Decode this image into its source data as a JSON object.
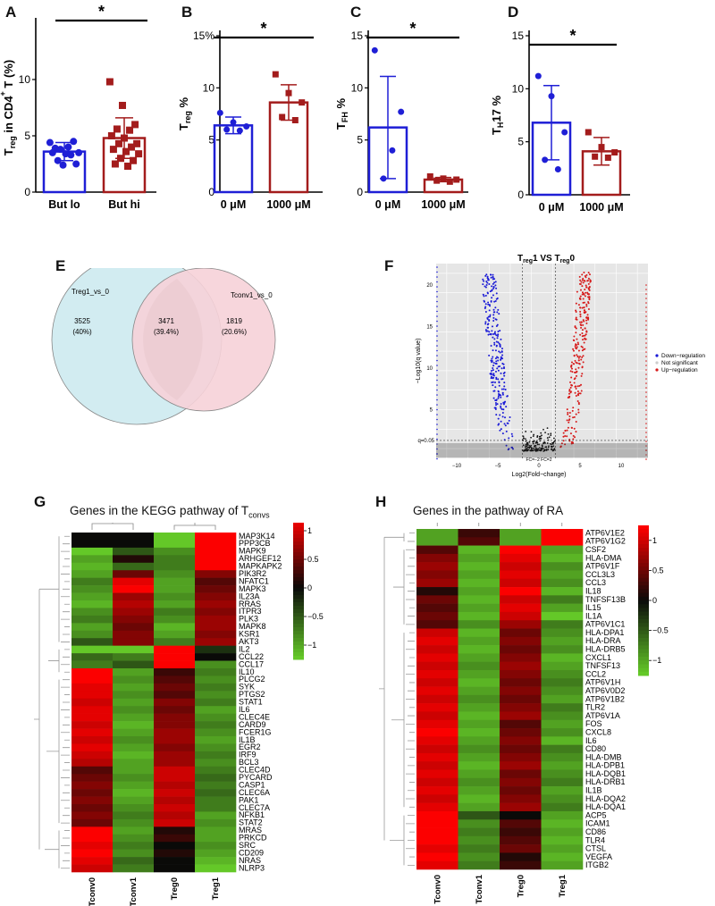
{
  "panels": {
    "A": {
      "label": "A",
      "ylabel_main": "T",
      "ylabel_sub": "reg",
      "ylabel_rest": " in CD4",
      "ylabel_sup": "+",
      "ylabel_end": " T (%)",
      "ylim": [
        0,
        15
      ],
      "yticks": [
        "0",
        "5",
        "10"
      ],
      "categories": [
        "But lo",
        "But hi"
      ],
      "means": [
        3.6,
        4.8
      ],
      "sd": [
        0.8,
        1.8
      ],
      "colors": [
        "#1f1fd6",
        "#a31c1c"
      ],
      "points": [
        [
          4.4,
          4.0,
          3.9,
          4.5,
          3.8,
          3.5,
          3.4,
          3.5,
          3.3,
          2.8,
          2.5,
          2.4
        ],
        [
          9.8,
          7.7,
          6.0,
          5.6,
          5.5,
          5.0,
          4.8,
          4.3,
          4.3,
          4.0,
          3.8,
          3.6,
          3.4,
          3.0,
          2.8,
          2.5,
          2.3
        ]
      ],
      "sig": "*"
    },
    "B": {
      "label": "B",
      "ylabel_main": "T",
      "ylabel_sub": "reg",
      "ylabel_end": " %",
      "ylim": [
        0,
        15
      ],
      "yticks": [
        "0",
        "5",
        "10",
        "15%"
      ],
      "categories": [
        "0 μM",
        "1000 μM"
      ],
      "means": [
        6.4,
        8.6
      ],
      "sd": [
        0.8,
        1.7
      ],
      "colors": [
        "#1f1fd6",
        "#a31c1c"
      ],
      "points": [
        [
          7.6,
          6.7,
          6.3,
          6.0,
          5.9
        ],
        [
          11.3,
          9.5,
          8.6,
          7.2,
          6.9
        ]
      ],
      "sig": "*"
    },
    "C": {
      "label": "C",
      "ylabel_main": "T",
      "ylabel_sub": "FH",
      "ylabel_end": " %",
      "ylim": [
        0,
        15
      ],
      "yticks": [
        "0",
        "5",
        "10",
        "15"
      ],
      "categories": [
        "0 μM",
        "1000 μM"
      ],
      "means": [
        6.2,
        1.2
      ],
      "sd": [
        4.9,
        0.2
      ],
      "colors": [
        "#1f1fd6",
        "#a31c1c"
      ],
      "points": [
        [
          13.6,
          7.7,
          4.0,
          1.3
        ],
        [
          1.5,
          1.3,
          1.2,
          1.1,
          1.0
        ]
      ],
      "sig": "*"
    },
    "D": {
      "label": "D",
      "ylabel_main": "T",
      "ylabel_sub": "H",
      "ylabel_end": "17 %",
      "ylim": [
        0,
        15
      ],
      "yticks": [
        "0",
        "5",
        "10",
        "15"
      ],
      "categories": [
        "0 μM",
        "1000 μM"
      ],
      "means": [
        6.8,
        4.1
      ],
      "sd": [
        3.5,
        1.3
      ],
      "colors": [
        "#1f1fd6",
        "#a31c1c"
      ],
      "points": [
        [
          11.2,
          9.3,
          5.9,
          3.3,
          2.4
        ],
        [
          5.9,
          4.5,
          4.0,
          3.6,
          3.5
        ]
      ],
      "sig": "*"
    },
    "E": {
      "label": "E",
      "left_name": "Treg1_vs_0",
      "right_name": "Tconv1_vs_0",
      "left_only": "3525",
      "left_only_pct": "(40%)",
      "overlap": "3471",
      "overlap_pct": "(39.4%)",
      "right_only": "1819",
      "right_only_pct": "(20.6%)",
      "left_color": "#d2ecf1",
      "right_color": "#f6d2d8"
    },
    "F": {
      "label": "F",
      "title_main": "T",
      "title_sub1": "reg",
      "title_mid": "1 VS T",
      "title_sub2": "reg",
      "title_end": "0",
      "ylabel": "−Log10(q value)",
      "xlabel": "Log2(Fold−change)",
      "xticks": [
        "−10",
        "−5",
        "0",
        "5",
        "10"
      ],
      "yticks": [
        "5",
        "10",
        "15",
        "20"
      ],
      "q_label": "q=0.05",
      "fc_label": "FC=−2 FC=2",
      "legend": [
        "Down−regulation",
        "Not significant",
        "Up−regulation"
      ],
      "legend_colors": [
        "#1a1ad6",
        "#cccccc",
        "#d61a1a"
      ]
    },
    "G": {
      "label": "G",
      "title_main": "Genes in the KEGG pathway of T",
      "title_sub": "convs",
      "columns": [
        "Tconv0",
        "Tconv1",
        "Treg0",
        "Treg1"
      ],
      "scale_ticks": [
        "1",
        "0.5",
        "0",
        "−0.5",
        "−1"
      ],
      "genes": [
        "MAP3K14",
        "PPP3CB",
        "MAPK9",
        "ARHGEF12",
        "MAPKAPK2",
        "PIK3R2",
        "NFATC1",
        "MAPK3",
        "IL23A",
        "RRAS",
        "ITPR3",
        "PLK3",
        "MAPK8",
        "KSR1",
        "AKT3",
        "IL2",
        "CCL22",
        "CCL17",
        "IL10",
        "PLCG2",
        "SYK",
        "PTGS2",
        "STAT1",
        "IL6",
        "CLEC4E",
        "CARD9",
        "FCER1G",
        "IL1B",
        "EGR2",
        "IRF9",
        "BCL3",
        "CLEC4D",
        "PYCARD",
        "CASP1",
        "CLEC6A",
        "PAK1",
        "CLEC7A",
        "NFKB1",
        "STAT2",
        "MRAS",
        "PRKCD",
        "SRC",
        "CD209",
        "NRAS",
        "NLRP3"
      ],
      "values": [
        [
          0,
          0,
          -1,
          1
        ],
        [
          0,
          0,
          -1,
          1
        ],
        [
          -1,
          -0.4,
          -0.7,
          1
        ],
        [
          -0.8,
          0.1,
          -0.6,
          1
        ],
        [
          -0.9,
          -0.5,
          -0.6,
          1
        ],
        [
          -0.8,
          0.4,
          -0.7,
          0.5
        ],
        [
          -0.6,
          0.9,
          -0.8,
          0.3
        ],
        [
          -0.7,
          1,
          -0.8,
          0.4
        ],
        [
          -0.8,
          0.6,
          -0.7,
          0.5
        ],
        [
          -0.9,
          0.7,
          -0.8,
          0.6
        ],
        [
          -0.7,
          0.6,
          -0.6,
          0.5
        ],
        [
          -0.6,
          0.5,
          -0.7,
          0.6
        ],
        [
          -0.8,
          0.4,
          -0.9,
          0.6
        ],
        [
          -0.7,
          0.5,
          -0.8,
          0.5
        ],
        [
          -0.4,
          0.5,
          -0.6,
          0.6
        ],
        [
          -1,
          -1,
          1,
          -0.2
        ],
        [
          -0.5,
          -0.6,
          1,
          0
        ],
        [
          -0.6,
          -0.4,
          1,
          -0.7
        ],
        [
          1,
          -0.8,
          0.2,
          -0.6
        ],
        [
          1,
          -0.7,
          0.3,
          -0.7
        ],
        [
          0.9,
          -0.8,
          0.4,
          -0.6
        ],
        [
          0.9,
          -0.7,
          0.3,
          -0.7
        ],
        [
          0.8,
          -0.8,
          0.5,
          -0.6
        ],
        [
          0.9,
          -0.7,
          0.4,
          -0.8
        ],
        [
          0.9,
          -0.8,
          0.5,
          -0.7
        ],
        [
          0.8,
          -0.9,
          0.5,
          -0.6
        ],
        [
          0.9,
          -0.8,
          0.6,
          -0.7
        ],
        [
          0.8,
          -0.7,
          0.6,
          -0.8
        ],
        [
          0.9,
          -0.8,
          0.5,
          -0.7
        ],
        [
          0.8,
          -0.9,
          0.6,
          -0.6
        ],
        [
          0.7,
          -0.8,
          0.6,
          -0.7
        ],
        [
          0.3,
          -0.8,
          0.8,
          -0.6
        ],
        [
          0.4,
          -0.7,
          0.8,
          -0.5
        ],
        [
          0.5,
          -0.8,
          0.7,
          -0.6
        ],
        [
          0.4,
          -0.9,
          0.8,
          -0.5
        ],
        [
          0.5,
          -0.8,
          0.7,
          -0.6
        ],
        [
          0.4,
          -0.7,
          0.8,
          -0.6
        ],
        [
          0.5,
          -0.6,
          0.7,
          -0.8
        ],
        [
          0.4,
          -0.7,
          0.8,
          -0.7
        ],
        [
          1,
          -0.8,
          0.1,
          -0.8
        ],
        [
          1,
          -0.7,
          0.2,
          -0.8
        ],
        [
          0.9,
          -0.6,
          0,
          -0.7
        ],
        [
          1,
          -0.7,
          0.1,
          -0.8
        ],
        [
          0.9,
          -0.5,
          0,
          -0.9
        ],
        [
          0.8,
          -0.6,
          0,
          -1
        ]
      ]
    },
    "H": {
      "label": "H",
      "title": "Genes in the pathway of RA",
      "columns": [
        "Tconv0",
        "Tconv1",
        "Treg0",
        "Treg1"
      ],
      "scale_ticks": [
        "1",
        "0.5",
        "0",
        "−0.5",
        "−1"
      ],
      "genes": [
        "ATP6V1E2",
        "ATP6V1G2",
        "CSF2",
        "HLA-DMA",
        "ATP6V1F",
        "CCL3L3",
        "CCL3",
        "IL18",
        "TNFSF13B",
        "IL15",
        "IL1A",
        "ATP6V1C1",
        "HLA-DPA1",
        "HLA-DRA",
        "HLA-DRB5",
        "CXCL1",
        "TNFSF13",
        "CCL2",
        "ATP6V1H",
        "ATP6V0D2",
        "ATP6V1B2",
        "TLR2",
        "ATP6V1A",
        "FOS",
        "CXCL8",
        "IL6",
        "CD80",
        "HLA-DMB",
        "HLA-DPB1",
        "HLA-DQB1",
        "HLA-DRB1",
        "IL1B",
        "HLA-DQA2",
        "HLA-DQA1",
        "ACP5",
        "ICAM1",
        "CD86",
        "TLR4",
        "CTSL",
        "VEGFA",
        "ITGB2"
      ],
      "values": [
        [
          -0.8,
          0.2,
          -0.8,
          1
        ],
        [
          -0.8,
          0.3,
          -0.8,
          1
        ],
        [
          0.3,
          -0.9,
          1,
          -0.8
        ],
        [
          0.5,
          -0.8,
          0.9,
          -0.9
        ],
        [
          0.6,
          -0.9,
          0.8,
          -0.7
        ],
        [
          0.5,
          -0.8,
          0.9,
          -0.8
        ],
        [
          0.6,
          -0.9,
          0.8,
          -0.7
        ],
        [
          0.1,
          -0.8,
          1,
          -0.9
        ],
        [
          0.4,
          -0.9,
          0.8,
          -0.6
        ],
        [
          0.3,
          -0.8,
          0.9,
          -0.8
        ],
        [
          0.4,
          -0.9,
          0.8,
          -1
        ],
        [
          0.3,
          -0.7,
          0.6,
          -0.6
        ],
        [
          0.8,
          -0.9,
          0.4,
          -0.7
        ],
        [
          0.9,
          -0.8,
          0.5,
          -0.8
        ],
        [
          0.8,
          -0.9,
          0.4,
          -0.7
        ],
        [
          0.9,
          -0.8,
          0.5,
          -0.9
        ],
        [
          0.8,
          -0.7,
          0.6,
          -0.8
        ],
        [
          0.9,
          -0.8,
          0.5,
          -0.7
        ],
        [
          0.8,
          -0.9,
          0.4,
          -0.6
        ],
        [
          0.9,
          -0.8,
          0.5,
          -0.7
        ],
        [
          0.8,
          -0.7,
          0.4,
          -0.8
        ],
        [
          0.9,
          -0.8,
          0.5,
          -0.6
        ],
        [
          0.8,
          -0.9,
          0.6,
          -0.7
        ],
        [
          0.9,
          -0.8,
          0.3,
          -0.8
        ],
        [
          1,
          -0.9,
          0.4,
          -0.7
        ],
        [
          0.9,
          -0.8,
          0.5,
          -0.9
        ],
        [
          0.8,
          -0.7,
          0.4,
          -0.6
        ],
        [
          0.9,
          -0.8,
          0.5,
          -0.7
        ],
        [
          0.8,
          -0.9,
          0.6,
          -0.8
        ],
        [
          0.9,
          -0.8,
          0.4,
          -0.7
        ],
        [
          0.8,
          -0.7,
          0.5,
          -0.6
        ],
        [
          0.9,
          -0.8,
          0.4,
          -0.8
        ],
        [
          0.8,
          -0.9,
          0.5,
          -0.7
        ],
        [
          0.9,
          -0.8,
          0.6,
          -0.6
        ],
        [
          1,
          -0.4,
          0,
          -0.8
        ],
        [
          1,
          -0.7,
          0.3,
          -0.9
        ],
        [
          1,
          -0.6,
          0.2,
          -0.8
        ],
        [
          1,
          -0.7,
          0.3,
          -0.9
        ],
        [
          0.9,
          -0.6,
          0.4,
          -0.8
        ],
        [
          1,
          -0.7,
          0.1,
          -0.9
        ],
        [
          0.9,
          -0.6,
          0.2,
          -0.8
        ]
      ]
    }
  },
  "chart_data": [
    {
      "type": "bar",
      "panel": "A",
      "categories": [
        "But lo",
        "But hi"
      ],
      "values": [
        3.6,
        4.8
      ],
      "ylabel": "Treg in CD4+ T (%)",
      "ylim": [
        0,
        15
      ]
    },
    {
      "type": "bar",
      "panel": "B",
      "categories": [
        "0 μM",
        "1000 μM"
      ],
      "values": [
        6.4,
        8.6
      ],
      "ylabel": "Treg %",
      "ylim": [
        0,
        15
      ]
    },
    {
      "type": "bar",
      "panel": "C",
      "categories": [
        "0 μM",
        "1000 μM"
      ],
      "values": [
        6.2,
        1.2
      ],
      "ylabel": "TFH %",
      "ylim": [
        0,
        15
      ]
    },
    {
      "type": "bar",
      "panel": "D",
      "categories": [
        "0 μM",
        "1000 μM"
      ],
      "values": [
        6.8,
        4.1
      ],
      "ylabel": "TH17 %",
      "ylim": [
        0,
        15
      ]
    },
    {
      "type": "scatter",
      "panel": "F",
      "title": "Treg1 VS Treg0",
      "xlabel": "Log2(Fold−change)",
      "ylabel": "−Log10(q value)"
    },
    {
      "type": "heatmap",
      "panel": "G",
      "title": "Genes in the KEGG pathway of Tconvs"
    },
    {
      "type": "heatmap",
      "panel": "H",
      "title": "Genes in the pathway of RA"
    }
  ]
}
